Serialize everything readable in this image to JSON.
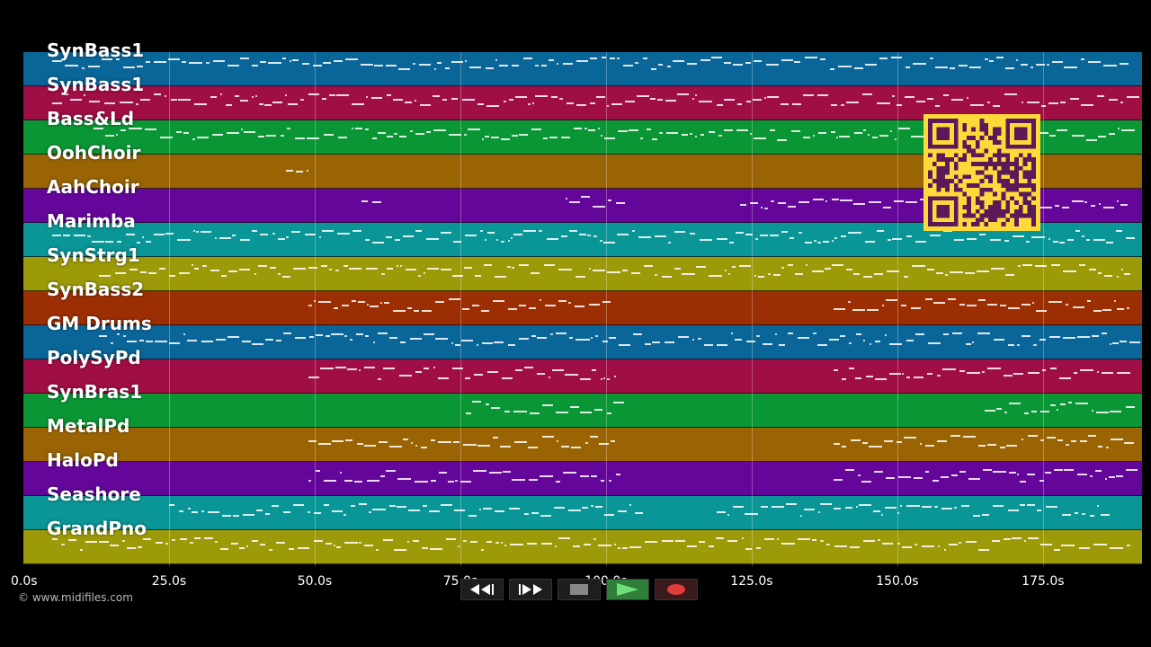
{
  "tracks": [
    {
      "name": "SynBass1",
      "color": "#0a6698"
    },
    {
      "name": "SynBass1",
      "color": "#a00e46"
    },
    {
      "name": "Bass&Ld",
      "color": "#0a9634"
    },
    {
      "name": "OohChoir",
      "color": "#9a6404"
    },
    {
      "name": "AahChoir",
      "color": "#65069a"
    },
    {
      "name": "Marimba",
      "color": "#0a9696"
    },
    {
      "name": "SynStrg1",
      "color": "#9c9a08"
    },
    {
      "name": "SynBass2",
      "color": "#9c2e04"
    },
    {
      "name": "GM Drums",
      "color": "#0a6698"
    },
    {
      "name": "PolySyPd",
      "color": "#a00e46"
    },
    {
      "name": "SynBras1",
      "color": "#0a9634"
    },
    {
      "name": "MetalPd",
      "color": "#9a6404"
    },
    {
      "name": "HaloPd",
      "color": "#65069a"
    },
    {
      "name": "Seashore",
      "color": "#0a9696"
    },
    {
      "name": "GrandPno",
      "color": "#9c9a08"
    }
  ],
  "timeline": {
    "max_seconds": 192,
    "ticks": [
      {
        "label": "0.0s",
        "seconds": 0
      },
      {
        "label": "25.0s",
        "seconds": 25
      },
      {
        "label": "50.0s",
        "seconds": 50
      },
      {
        "label": "75.0s",
        "seconds": 75
      },
      {
        "label": "100.0s",
        "seconds": 100
      },
      {
        "label": "125.0s",
        "seconds": 125
      },
      {
        "label": "150.0s",
        "seconds": 150
      },
      {
        "label": "175.0s",
        "seconds": 175
      }
    ]
  },
  "copyright": "© www.midifiles.com",
  "transport": {
    "rewind_icon": "rewind-icon",
    "fastforward_icon": "fast-forward-icon",
    "stop_icon": "stop-icon",
    "play_icon": "play-icon",
    "record_icon": "record-icon"
  },
  "qr_code": {
    "color": "#ffd83a",
    "dark_color": "#5a1a5a"
  }
}
